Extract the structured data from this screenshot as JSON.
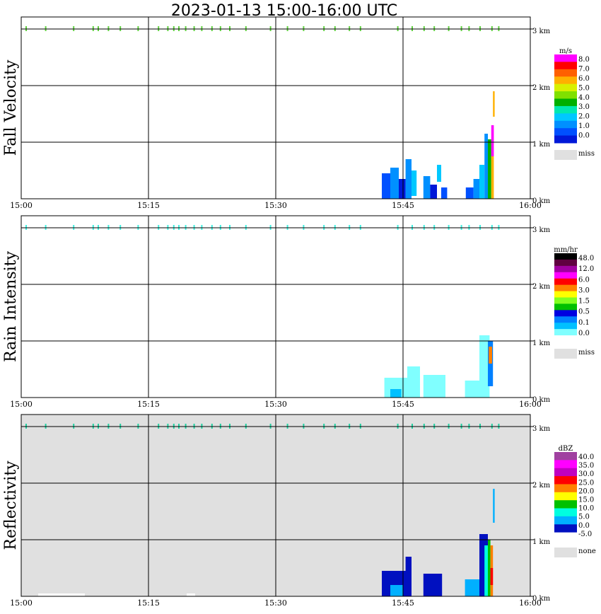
{
  "title": "2023-01-13   15:00-16:00 UTC",
  "x_ticks": [
    "15:00",
    "15:15",
    "15:30",
    "15:45",
    "16:00"
  ],
  "y_ticks": [
    "0 km",
    "1 km",
    "2 km",
    "3 km"
  ],
  "colors": {
    "missing": "#e0e0e0",
    "grid": "#000000"
  },
  "chart_data": [
    {
      "type": "heatmap",
      "name": "fall-velocity",
      "ylabel": "Fall Velocity",
      "unit": "m/s",
      "xlim": [
        "15:00",
        "16:00"
      ],
      "ylim": [
        0,
        3
      ],
      "grid": true,
      "background": "#ffffff",
      "legend_labels": [
        "8.0",
        "7.0",
        "6.0",
        "5.0",
        "4.0",
        "3.0",
        "2.0",
        "1.0",
        "0.0"
      ],
      "missing_label": "miss",
      "colorbar": [
        "#ff00ff",
        "#ff0000",
        "#ff6000",
        "#ffb000",
        "#d8f000",
        "#80e000",
        "#00b000",
        "#00e8b0",
        "#00c8ff",
        "#0090ff",
        "#0050ff",
        "#0018d8"
      ],
      "top_marks": {
        "y_km": 3.0,
        "x_min": [
          0.5,
          2.8,
          6.1,
          8.4,
          9.0,
          10.2,
          11.6,
          13.7,
          16.1,
          17.2,
          17.9,
          18.5,
          19.3,
          20.3,
          21.2,
          22.4,
          23.4,
          24.5,
          26.4,
          29.3,
          31.3,
          33.2,
          35.6,
          36.9,
          38.6,
          39.9,
          44.3,
          46.0,
          47.4,
          48.6,
          50.3,
          51.8,
          52.7,
          54.0,
          55.4,
          56.2
        ],
        "color": "#60d040"
      },
      "blocks": [
        {
          "t0": 42.5,
          "t1": 43.5,
          "h0": 0.0,
          "h1": 0.45,
          "c": "#0050ff"
        },
        {
          "t0": 43.5,
          "t1": 44.5,
          "h0": 0.0,
          "h1": 0.55,
          "c": "#0090ff"
        },
        {
          "t0": 44.5,
          "t1": 45.3,
          "h0": 0.0,
          "h1": 0.35,
          "c": "#0018d8"
        },
        {
          "t0": 45.3,
          "t1": 46.0,
          "h0": 0.0,
          "h1": 0.7,
          "c": "#0090ff"
        },
        {
          "t0": 46.0,
          "t1": 46.6,
          "h0": 0.05,
          "h1": 0.5,
          "c": "#00c8ff"
        },
        {
          "t0": 47.4,
          "t1": 48.2,
          "h0": 0.0,
          "h1": 0.4,
          "c": "#0090ff"
        },
        {
          "t0": 48.2,
          "t1": 49.0,
          "h0": 0.0,
          "h1": 0.25,
          "c": "#0018d8"
        },
        {
          "t0": 49.0,
          "t1": 49.5,
          "h0": 0.3,
          "h1": 0.6,
          "c": "#00c8ff"
        },
        {
          "t0": 49.5,
          "t1": 50.2,
          "h0": 0.0,
          "h1": 0.2,
          "c": "#0050ff"
        },
        {
          "t0": 52.4,
          "t1": 53.3,
          "h0": 0.0,
          "h1": 0.2,
          "c": "#0050ff"
        },
        {
          "t0": 53.3,
          "t1": 54.0,
          "h0": 0.0,
          "h1": 0.35,
          "c": "#0090ff"
        },
        {
          "t0": 54.0,
          "t1": 54.6,
          "h0": 0.0,
          "h1": 0.6,
          "c": "#00c8ff"
        },
        {
          "t0": 54.6,
          "t1": 55.0,
          "h0": 0.0,
          "h1": 1.15,
          "c": "#0090ff"
        },
        {
          "t0": 55.0,
          "t1": 55.4,
          "h0": 0.0,
          "h1": 1.05,
          "c": "#00b000"
        },
        {
          "t0": 55.4,
          "t1": 55.7,
          "h0": 0.0,
          "h1": 0.75,
          "c": "#ffb000"
        },
        {
          "t0": 55.4,
          "t1": 55.7,
          "h0": 0.75,
          "h1": 1.3,
          "c": "#ff00ff"
        },
        {
          "t0": 55.6,
          "t1": 55.8,
          "h0": 1.45,
          "h1": 1.9,
          "c": "#ffb000"
        }
      ]
    },
    {
      "type": "heatmap",
      "name": "rain-intensity",
      "ylabel": "Rain Intensity",
      "unit": "mm/hr",
      "xlim": [
        "15:00",
        "16:00"
      ],
      "ylim": [
        0,
        3
      ],
      "grid": true,
      "background": "#ffffff",
      "legend_labels": [
        "48.0",
        "12.0",
        "6.0",
        "3.0",
        "1.5",
        "0.5",
        "0.1",
        "0.0"
      ],
      "missing_label": "miss",
      "colorbar": [
        "#000000",
        "#600040",
        "#a000a0",
        "#ff00ff",
        "#ff0000",
        "#ff8000",
        "#ffff00",
        "#80ff20",
        "#00c000",
        "#0000e0",
        "#0080ff",
        "#00c0ff",
        "#80ffff",
        "#ffffff"
      ],
      "top_marks": {
        "y_km": 3.0,
        "x_min": [
          0.5,
          2.8,
          6.1,
          8.4,
          9.0,
          10.2,
          11.6,
          13.7,
          16.1,
          17.2,
          17.9,
          18.5,
          19.3,
          20.3,
          21.2,
          22.4,
          23.4,
          24.5,
          26.4,
          29.3,
          31.3,
          33.2,
          35.6,
          36.9,
          38.6,
          39.9,
          44.3,
          46.0,
          47.4,
          48.6,
          50.3,
          51.8,
          52.7,
          54.0,
          55.4,
          56.2
        ],
        "color": "#40f0e0"
      },
      "blocks": [
        {
          "t0": 42.8,
          "t1": 45.5,
          "h0": 0.0,
          "h1": 0.35,
          "c": "#80ffff"
        },
        {
          "t0": 43.5,
          "t1": 44.8,
          "h0": 0.0,
          "h1": 0.15,
          "c": "#00c0ff"
        },
        {
          "t0": 45.5,
          "t1": 47.0,
          "h0": 0.0,
          "h1": 0.55,
          "c": "#80ffff"
        },
        {
          "t0": 47.4,
          "t1": 50.0,
          "h0": 0.0,
          "h1": 0.4,
          "c": "#80ffff"
        },
        {
          "t0": 52.3,
          "t1": 54.5,
          "h0": 0.0,
          "h1": 0.3,
          "c": "#80ffff"
        },
        {
          "t0": 54.0,
          "t1": 55.2,
          "h0": 0.0,
          "h1": 1.1,
          "c": "#80ffff"
        },
        {
          "t0": 55.0,
          "t1": 55.6,
          "h0": 0.2,
          "h1": 1.0,
          "c": "#0080ff"
        },
        {
          "t0": 55.1,
          "t1": 55.5,
          "h0": 0.6,
          "h1": 0.9,
          "c": "#ff8000"
        }
      ]
    },
    {
      "type": "heatmap",
      "name": "reflectivity",
      "ylabel": "Reflectivity",
      "unit": "dBZ",
      "xlim": [
        "15:00",
        "16:00"
      ],
      "ylim": [
        0,
        3
      ],
      "grid": true,
      "background": "#e0e0e0",
      "legend_labels": [
        "40.0",
        "35.0",
        "30.0",
        "25.0",
        "20.0",
        "15.0",
        "10.0",
        "5.0",
        "0.0",
        "-5.0"
      ],
      "missing_label": "none",
      "colorbar": [
        "#a040a0",
        "#ff00ff",
        "#c000c0",
        "#ff0000",
        "#ff8000",
        "#ffff00",
        "#00c000",
        "#00ffe0",
        "#00b0ff",
        "#0010c0",
        "#ffffff"
      ],
      "top_marks": {
        "y_km": 3.0,
        "x_min": [
          0.5,
          2.8,
          6.1,
          8.4,
          9.0,
          10.2,
          11.6,
          13.7,
          16.1,
          17.2,
          17.9,
          18.5,
          19.3,
          20.3,
          21.2,
          22.4,
          23.4,
          24.5,
          26.4,
          29.3,
          31.3,
          33.2,
          35.6,
          36.9,
          38.6,
          39.9,
          44.3,
          46.0,
          47.4,
          48.6,
          50.3,
          51.8,
          52.7,
          54.0,
          55.4,
          56.2
        ],
        "color": "#20d0a0"
      },
      "blocks": [
        {
          "t0": 2.0,
          "t1": 7.5,
          "h0": 0.0,
          "h1": 0.05,
          "c": "#ffffff"
        },
        {
          "t0": 19.5,
          "t1": 20.5,
          "h0": 0.0,
          "h1": 0.05,
          "c": "#ffffff"
        },
        {
          "t0": 42.5,
          "t1": 45.5,
          "h0": 0.0,
          "h1": 0.45,
          "c": "#0010c0"
        },
        {
          "t0": 43.5,
          "t1": 45.0,
          "h0": 0.0,
          "h1": 0.2,
          "c": "#00b0ff"
        },
        {
          "t0": 45.3,
          "t1": 46.0,
          "h0": 0.0,
          "h1": 0.7,
          "c": "#0010c0"
        },
        {
          "t0": 47.4,
          "t1": 49.6,
          "h0": 0.0,
          "h1": 0.4,
          "c": "#0010c0"
        },
        {
          "t0": 52.3,
          "t1": 54.0,
          "h0": 0.0,
          "h1": 0.3,
          "c": "#00b0ff"
        },
        {
          "t0": 54.0,
          "t1": 55.0,
          "h0": 0.0,
          "h1": 1.1,
          "c": "#0010c0"
        },
        {
          "t0": 54.6,
          "t1": 55.0,
          "h0": 0.0,
          "h1": 0.9,
          "c": "#00ffe0"
        },
        {
          "t0": 55.0,
          "t1": 55.3,
          "h0": 0.0,
          "h1": 1.0,
          "c": "#00c000"
        },
        {
          "t0": 55.3,
          "t1": 55.6,
          "h0": 0.0,
          "h1": 0.9,
          "c": "#ff8000"
        },
        {
          "t0": 55.3,
          "t1": 55.6,
          "h0": 0.2,
          "h1": 0.5,
          "c": "#ff0000"
        },
        {
          "t0": 55.6,
          "t1": 55.8,
          "h0": 1.3,
          "h1": 1.9,
          "c": "#00b0ff"
        }
      ]
    }
  ]
}
